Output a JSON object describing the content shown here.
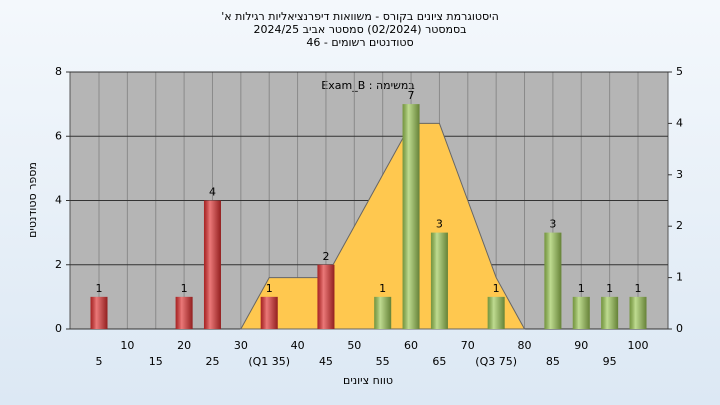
{
  "chart_data": {
    "type": "bar",
    "title_lines": [
      "היסטוגרמת ציונים בקורס - משוואות דיפרנציאליות רגילות א'",
      "בסמסטר (02/2024) סמסטר אביב 2024/25",
      "סטודנטים רשומים - 46"
    ],
    "annotation": "במשימה : Exam_B",
    "x_label": "טווח ציונים",
    "y_label": "מספר סטודנטים",
    "categories": [
      "5",
      "10",
      "15",
      "20",
      "25",
      "30",
      "(Q1 35)",
      "40",
      "45",
      "50",
      "55",
      "60",
      "65",
      "70",
      "(Q3 75)",
      "80",
      "85",
      "90",
      "95",
      "100"
    ],
    "values": [
      1,
      0,
      0,
      1,
      4,
      0,
      1,
      0,
      2,
      0,
      1,
      7,
      3,
      0,
      1,
      0,
      3,
      1,
      1,
      1
    ],
    "bar_colors": [
      "#e03030",
      "#e03030",
      "#e03030",
      "#e03030",
      "#e03030",
      "#e03030",
      "#e03030",
      "#e03030",
      "#e03030",
      "#e03030",
      "#9cc855",
      "#9cc855",
      "#9cc855",
      "#9cc855",
      "#9cc855",
      "#9cc855",
      "#9cc855",
      "#9cc855",
      "#9cc855",
      "#9cc855"
    ],
    "area": {
      "axis": "y2",
      "color": "#ffc84f",
      "values": [
        null,
        null,
        null,
        null,
        null,
        0,
        1,
        1,
        1,
        2,
        3,
        4,
        4,
        2.5,
        1,
        0,
        null,
        null,
        null,
        null
      ]
    },
    "ylim": [
      0,
      8
    ],
    "yticks": [
      0,
      2,
      4,
      6,
      8
    ],
    "y2lim": [
      0,
      5
    ],
    "y2ticks": [
      0,
      1,
      2,
      3,
      4,
      5
    ],
    "grid": true
  }
}
